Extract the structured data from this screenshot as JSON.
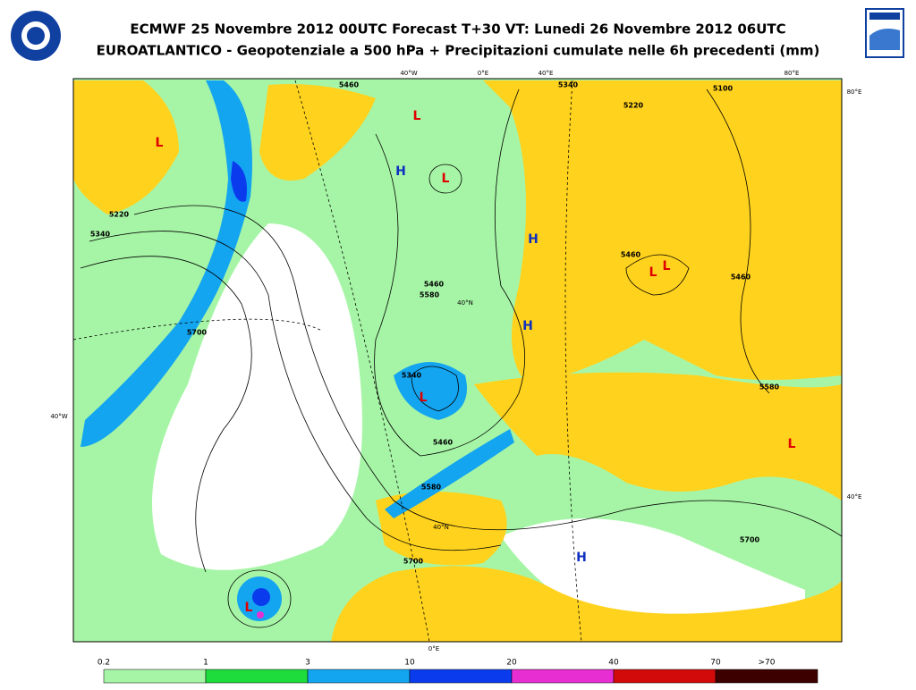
{
  "header": {
    "title": "ECMWF 25 Novembre 2012 00UTC Forecast T+30 VT: Lunedi 26 Novembre 2012 06UTC",
    "subtitle": "EUROATLANTICO - Geopotenziale a 500 hPa + Precipitazioni cumulate nelle 6h precedenti (mm)"
  },
  "map": {
    "coordinate_labels": [
      "40°W",
      "0°E",
      "40°E",
      "80°E",
      "80°E",
      "40°W",
      "40°E",
      "40°N",
      "40°N",
      "0°E"
    ],
    "contour_labels": [
      "5220",
      "5340",
      "5460",
      "5580",
      "5700",
      "5700",
      "5580",
      "5460",
      "5460",
      "5340",
      "5460",
      "5580",
      "5700",
      "5100",
      "5220",
      "5340",
      "5460"
    ],
    "pressure_centers": [
      "L",
      "L",
      "L",
      "L",
      "L",
      "L",
      "L",
      "L",
      "H",
      "H",
      "H",
      "H"
    ]
  },
  "legend": {
    "labels": [
      "0.2",
      "1",
      "3",
      "10",
      "20",
      "40",
      "70",
      ">70"
    ],
    "colors": [
      "#a6f5a6",
      "#1edc3c",
      "#14a5f0",
      "#0a3ced",
      "#e62ed2",
      "#d20a0a",
      "#3c0000"
    ]
  }
}
